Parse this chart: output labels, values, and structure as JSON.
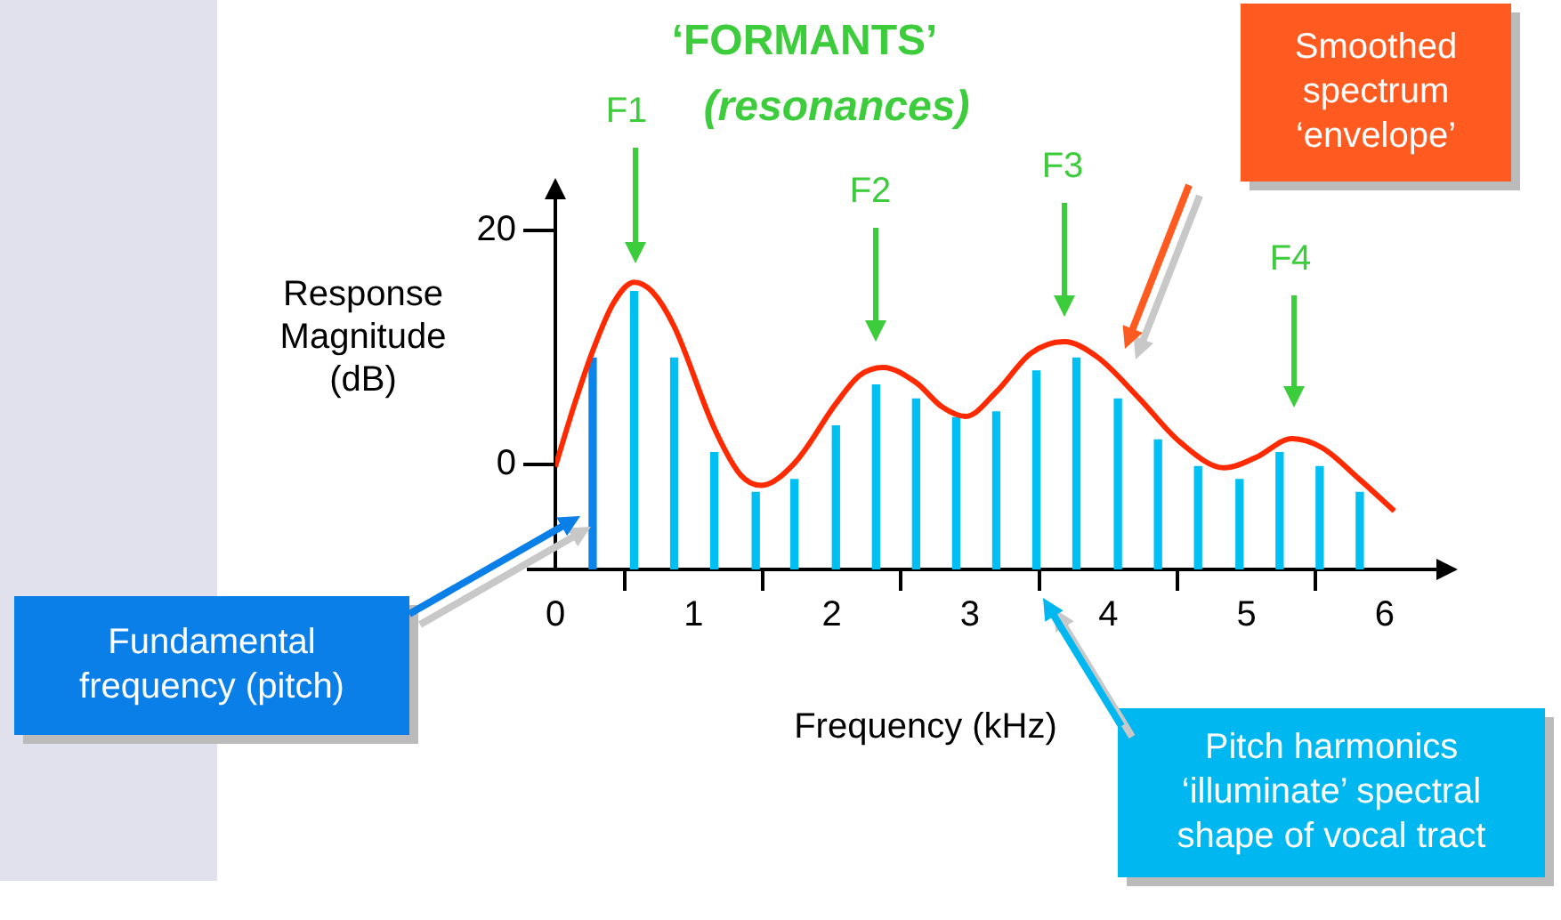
{
  "chart_data": {
    "type": "bar",
    "title": "‘FORMANTS’",
    "subtitle": "(resonances)",
    "xlabel": "Frequency (kHz)",
    "ylabel": "Response Magnitude (dB)",
    "xlim": [
      0,
      6.4
    ],
    "xticks": [
      0,
      1,
      2,
      3,
      4,
      5,
      6
    ],
    "ylim": [
      -9,
      23
    ],
    "yticks": [
      0,
      20
    ],
    "grid": false,
    "legend": false,
    "series": [
      {
        "x": [
          0.27,
          0.57,
          0.86,
          1.15,
          1.45,
          1.73,
          2.03,
          2.32,
          2.61,
          2.9,
          3.19,
          3.48,
          3.77,
          4.07,
          4.36,
          4.65,
          4.95,
          5.24,
          5.53,
          5.82
        ],
        "base": [
          -9,
          -9,
          -9,
          -9,
          -9,
          -9,
          -9,
          -9,
          -9,
          -9,
          -9,
          -9,
          -9,
          -9,
          -9,
          -9,
          -9,
          -9,
          -9,
          -9
        ],
        "values": [
          18.1,
          23.8,
          18.1,
          10.0,
          6.6,
          7.7,
          12.3,
          15.8,
          14.6,
          13.0,
          13.5,
          17.0,
          18.1,
          14.6,
          11.1,
          8.8,
          7.7,
          10.0,
          8.8,
          6.6
        ],
        "colors": [
          "#0a84e8",
          "#00bff3",
          "#00bff3",
          "#00bff3",
          "#00bff3",
          "#00bff3",
          "#00bff3",
          "#00bff3",
          "#00bff3",
          "#00bff3",
          "#00bff3",
          "#00bff3",
          "#00bff3",
          "#00bff3",
          "#00bff3",
          "#00bff3",
          "#00bff3",
          "#00bff3",
          "#00bff3",
          "#00bff3"
        ]
      },
      {
        "type": "line",
        "color": "#ff2a00",
        "x": [
          0,
          0.14,
          0.27,
          0.42,
          0.57,
          0.7,
          0.86,
          1.15,
          1.34,
          1.49,
          1.73,
          2.03,
          2.2,
          2.37,
          2.61,
          2.8,
          2.97,
          3.19,
          3.44,
          3.68,
          3.92,
          4.22,
          4.52,
          4.84,
          5.07,
          5.33,
          5.55,
          5.81,
          6.07
        ],
        "values": [
          -0.2,
          5.2,
          9.7,
          13.8,
          15.6,
          14.8,
          11.8,
          3.1,
          -0.9,
          -1.8,
          0.1,
          5.2,
          7.6,
          8.3,
          7.0,
          4.9,
          4.1,
          6.2,
          9.5,
          10.5,
          9.2,
          5.7,
          1.9,
          -0.3,
          0.6,
          2.2,
          1.4,
          -1.2,
          -4.0
        ]
      }
    ],
    "annotations": [
      "F1",
      "F2",
      "F3",
      "F4",
      "Smoothed spectrum ‘envelope’",
      "Fundamental frequency (pitch)",
      "Pitch harmonics ‘illuminate’ spectral shape of vocal tract"
    ]
  }
}
